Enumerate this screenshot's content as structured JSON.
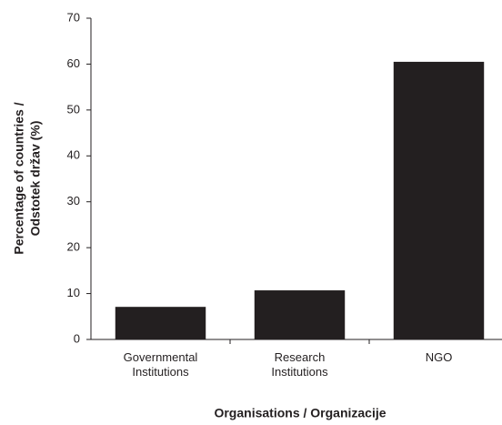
{
  "chart_data": {
    "type": "bar",
    "categories": [
      "Governmental Institutions",
      "Research Institutions",
      "NGO"
    ],
    "values": [
      7.1,
      10.7,
      60.5
    ],
    "color": "#231f20",
    "ylim": [
      0,
      70
    ],
    "yticks": [
      0,
      10,
      20,
      30,
      40,
      50,
      60,
      70
    ],
    "xlabel": "Organisations / Organizacije",
    "ylabel": [
      "Percentage of countries /",
      "Odstotek držav (%)"
    ],
    "grid": false
  }
}
